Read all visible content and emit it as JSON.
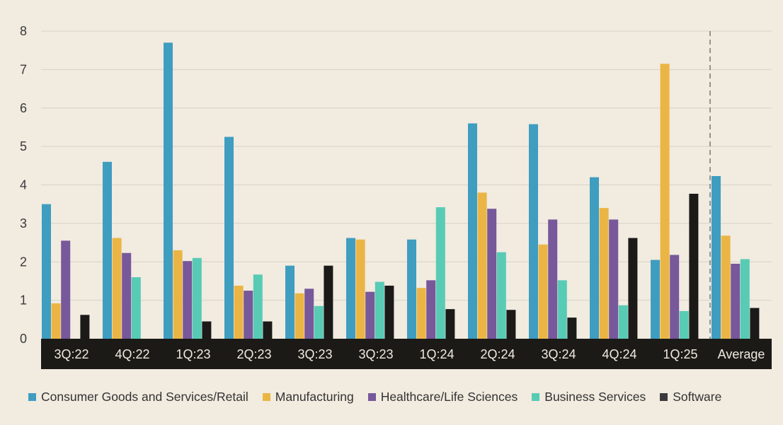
{
  "chart_data": {
    "type": "bar",
    "title": "",
    "xlabel": "",
    "ylabel": "",
    "ylim": [
      0,
      8
    ],
    "yticks": [
      "0",
      "1",
      "2",
      "3",
      "4",
      "5",
      "6",
      "7",
      "8"
    ],
    "grid": true,
    "legend_position": "bottom",
    "categories": [
      "3Q:22",
      "4Q:22",
      "1Q:23",
      "2Q:23",
      "3Q:23",
      "3Q:23",
      "1Q:24",
      "2Q:24",
      "3Q:24",
      "4Q:24",
      "1Q:25",
      "Average"
    ],
    "series": [
      {
        "name": "Consumer Goods and Services/Retail",
        "color": "#3f9dc0",
        "values": [
          3.5,
          4.6,
          7.7,
          5.25,
          1.9,
          2.62,
          2.58,
          5.6,
          5.58,
          4.2,
          2.05,
          4.23
        ]
      },
      {
        "name": "Manufacturing",
        "color": "#ebb545",
        "values": [
          0.92,
          2.62,
          2.3,
          1.38,
          1.18,
          2.58,
          1.32,
          3.8,
          2.45,
          3.4,
          7.15,
          2.68
        ]
      },
      {
        "name": "Healthcare/Life Sciences",
        "color": "#77589a",
        "values": [
          2.55,
          2.23,
          2.02,
          1.25,
          1.3,
          1.22,
          1.52,
          3.38,
          3.1,
          3.1,
          2.18,
          1.95
        ]
      },
      {
        "name": "Business Services",
        "color": "#58cbb5",
        "values": [
          0,
          1.6,
          2.1,
          1.67,
          0.85,
          1.48,
          3.42,
          2.25,
          1.52,
          0.87,
          0.72,
          2.07
        ]
      },
      {
        "name": "Software",
        "color": "#1b1a18",
        "values": [
          0.62,
          0,
          0.45,
          0.45,
          1.9,
          1.38,
          0.77,
          0.75,
          0.55,
          2.62,
          3.77,
          0.8
        ]
      }
    ],
    "separator_before": "Average"
  }
}
